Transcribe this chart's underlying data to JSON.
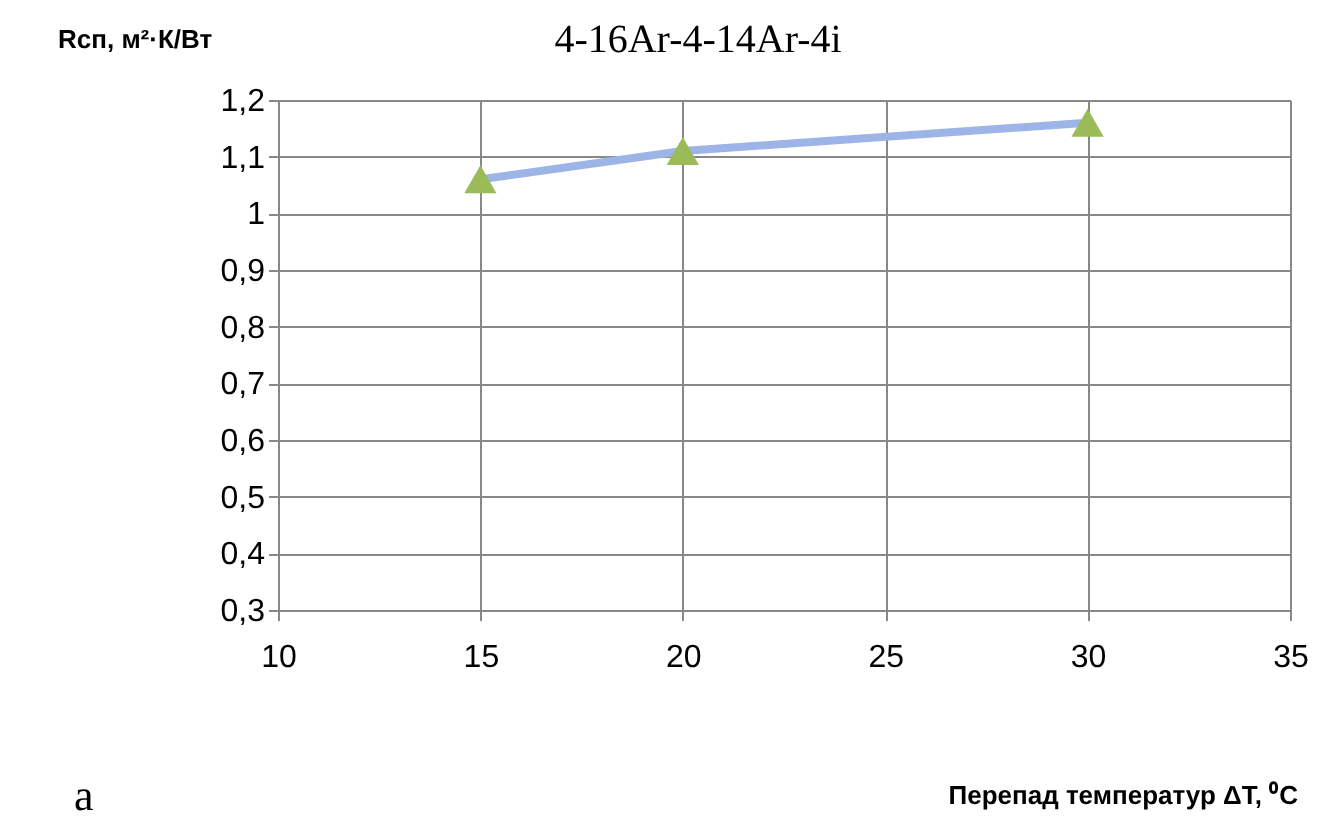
{
  "chart_data": {
    "type": "line",
    "title": "4-16Ar-4-14Ar-4i",
    "ylabel": "Rсп, м²·К/Вт",
    "xlabel": "Перепад температур ΔT, ⁰C",
    "annotations": [
      "а"
    ],
    "x": [
      15,
      20,
      30
    ],
    "series": [
      {
        "color": "#9db5e6",
        "marker": "none",
        "values": [
          1.06,
          1.11,
          1.16
        ]
      },
      {
        "type": "scatter",
        "color": "#9bbb59",
        "marker": "triangle",
        "values": [
          1.06,
          1.11,
          1.16
        ]
      }
    ],
    "xlim": [
      10,
      35
    ],
    "xticks": [
      10,
      15,
      20,
      25,
      30,
      35
    ],
    "ylim": [
      0.3,
      1.2
    ],
    "yticks": [
      {
        "value": 0.3,
        "label": "0,3"
      },
      {
        "value": 0.4,
        "label": "0,4"
      },
      {
        "value": 0.5,
        "label": "0,5"
      },
      {
        "value": 0.6,
        "label": "0,6"
      },
      {
        "value": 0.7,
        "label": "0,7"
      },
      {
        "value": 0.8,
        "label": "0,8"
      },
      {
        "value": 0.9,
        "label": "0,9"
      },
      1,
      {
        "value": 1.1,
        "label": "1,1"
      },
      {
        "value": 1.2,
        "label": "1,2"
      }
    ],
    "grid": true
  }
}
